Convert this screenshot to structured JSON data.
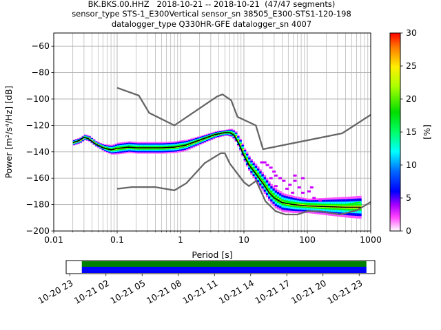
{
  "title_lines": [
    "BK.BKS.00.HHZ   2018-10-21 -- 2018-10-21  (47/47 segments)",
    "sensor_type STS-1_E300Vertical sensor_sn 38505_E300-STS1-120-198",
    "datalogger_type Q330HR-GFE datalogger_sn 4007"
  ],
  "chart_data": {
    "type": "heatmap",
    "subtype": "ppsd",
    "xlabel": "Period [s]",
    "ylabel": "Power [m²/s⁴/Hz] [dB]",
    "xscale": "log",
    "xlim": [
      0.01,
      1000
    ],
    "ylim": [
      -200,
      -50
    ],
    "grid": true,
    "x_ticks": [
      {
        "value": 0.01,
        "label": "0.01"
      },
      {
        "value": 0.1,
        "label": "0.1"
      },
      {
        "value": 1,
        "label": "1"
      },
      {
        "value": 10,
        "label": "10"
      },
      {
        "value": 100,
        "label": "100"
      },
      {
        "value": 1000,
        "label": "1000"
      }
    ],
    "y_ticks": [
      {
        "value": -60,
        "label": "−60"
      },
      {
        "value": -80,
        "label": "−80"
      },
      {
        "value": -100,
        "label": "−100"
      },
      {
        "value": -120,
        "label": "−120"
      },
      {
        "value": -140,
        "label": "−140"
      },
      {
        "value": -160,
        "label": "−160"
      },
      {
        "value": -180,
        "label": "−180"
      },
      {
        "value": -200,
        "label": "−200"
      }
    ],
    "colorbar": {
      "label": "[%]",
      "range": [
        0,
        30
      ],
      "ticks": [
        {
          "value": 0,
          "label": "0"
        },
        {
          "value": 5,
          "label": "5"
        },
        {
          "value": 10,
          "label": "10"
        },
        {
          "value": 15,
          "label": "15"
        },
        {
          "value": 20,
          "label": "20"
        },
        {
          "value": 25,
          "label": "25"
        },
        {
          "value": 30,
          "label": "30"
        }
      ]
    },
    "noise_models": [
      {
        "role": "nhnm",
        "color": "#666666",
        "points": [
          [
            0.1,
            -91.5
          ],
          [
            0.22,
            -97.4
          ],
          [
            0.32,
            -110.5
          ],
          [
            0.8,
            -120
          ],
          [
            3.8,
            -98
          ],
          [
            4.6,
            -96.5
          ],
          [
            6.3,
            -101
          ],
          [
            7.9,
            -113.5
          ],
          [
            15.4,
            -120
          ],
          [
            20,
            -138
          ],
          [
            354.8,
            -126
          ],
          [
            1000,
            -112
          ]
        ]
      },
      {
        "role": "nlnm",
        "color": "#666666",
        "points": [
          [
            0.1,
            -168
          ],
          [
            0.17,
            -166.7
          ],
          [
            0.4,
            -166.7
          ],
          [
            0.8,
            -169.2
          ],
          [
            1.24,
            -163.7
          ],
          [
            2.4,
            -148.6
          ],
          [
            4.3,
            -141.1
          ],
          [
            5,
            -141.1
          ],
          [
            6,
            -149
          ],
          [
            10,
            -163
          ],
          [
            12,
            -166
          ],
          [
            15.6,
            -162
          ],
          [
            21.9,
            -177.5
          ],
          [
            31.6,
            -185
          ],
          [
            45,
            -187.5
          ],
          [
            70,
            -187.5
          ],
          [
            101,
            -185
          ],
          [
            154,
            -185
          ],
          [
            328,
            -187.5
          ],
          [
            600,
            -184.4
          ],
          [
            1000,
            -178
          ]
        ]
      }
    ],
    "mean_curve": {
      "color": "#000000",
      "points": [
        [
          0.02,
          -133
        ],
        [
          0.025,
          -131.5
        ],
        [
          0.03,
          -129
        ],
        [
          0.035,
          -130
        ],
        [
          0.045,
          -134
        ],
        [
          0.06,
          -137
        ],
        [
          0.08,
          -138.5
        ],
        [
          0.1,
          -137.5
        ],
        [
          0.15,
          -136.5
        ],
        [
          0.2,
          -137
        ],
        [
          0.3,
          -137
        ],
        [
          0.5,
          -137
        ],
        [
          0.8,
          -136.5
        ],
        [
          1.2,
          -135
        ],
        [
          1.8,
          -132
        ],
        [
          2.5,
          -129.5
        ],
        [
          3.5,
          -127
        ],
        [
          5,
          -125.5
        ],
        [
          6,
          -125.5
        ],
        [
          7,
          -127.5
        ],
        [
          8.5,
          -135
        ],
        [
          10,
          -143
        ],
        [
          12,
          -150
        ],
        [
          15,
          -156
        ],
        [
          20,
          -164
        ],
        [
          25,
          -171
        ],
        [
          30,
          -175
        ],
        [
          40,
          -178.5
        ],
        [
          60,
          -180
        ],
        [
          100,
          -181
        ],
        [
          200,
          -181.5
        ],
        [
          400,
          -182
        ],
        [
          700,
          -182
        ]
      ]
    },
    "mode_curve": {
      "color": "#00ff00",
      "points": [
        [
          0.02,
          -133
        ],
        [
          0.025,
          -131.5
        ],
        [
          0.03,
          -129
        ],
        [
          0.035,
          -130
        ],
        [
          0.045,
          -134
        ],
        [
          0.06,
          -137
        ],
        [
          0.08,
          -138
        ],
        [
          0.1,
          -136.5
        ],
        [
          0.15,
          -136
        ],
        [
          0.2,
          -136.5
        ],
        [
          0.3,
          -136.5
        ],
        [
          0.5,
          -136.5
        ],
        [
          0.8,
          -136
        ],
        [
          1.2,
          -134.5
        ],
        [
          1.8,
          -131.5
        ],
        [
          2.5,
          -129
        ],
        [
          3.5,
          -126.5
        ],
        [
          5,
          -125
        ],
        [
          6,
          -125
        ],
        [
          7,
          -127
        ],
        [
          8.5,
          -134
        ],
        [
          10,
          -142
        ],
        [
          12,
          -149
        ],
        [
          15,
          -155
        ],
        [
          20,
          -162
        ],
        [
          25,
          -169
        ],
        [
          30,
          -174
        ],
        [
          40,
          -178
        ],
        [
          60,
          -179
        ],
        [
          100,
          -179
        ],
        [
          200,
          -180
        ],
        [
          400,
          -180
        ],
        [
          700,
          -178
        ]
      ]
    },
    "density_band": {
      "center": [
        [
          0.02,
          -133
        ],
        [
          0.025,
          -131.5
        ],
        [
          0.03,
          -129
        ],
        [
          0.035,
          -130
        ],
        [
          0.045,
          -134
        ],
        [
          0.06,
          -137
        ],
        [
          0.08,
          -138.5
        ],
        [
          0.1,
          -137.5
        ],
        [
          0.15,
          -136.5
        ],
        [
          0.2,
          -137
        ],
        [
          0.3,
          -137
        ],
        [
          0.5,
          -137
        ],
        [
          0.8,
          -136.5
        ],
        [
          1.2,
          -135
        ],
        [
          1.8,
          -132
        ],
        [
          2.5,
          -129.5
        ],
        [
          3.5,
          -127
        ],
        [
          5,
          -125.5
        ],
        [
          6,
          -125.5
        ],
        [
          7,
          -127.5
        ],
        [
          8.5,
          -135
        ],
        [
          10,
          -143
        ],
        [
          12,
          -150
        ],
        [
          15,
          -156
        ],
        [
          20,
          -164
        ],
        [
          25,
          -171
        ],
        [
          30,
          -175
        ],
        [
          40,
          -178.5
        ],
        [
          60,
          -180
        ],
        [
          100,
          -181
        ],
        [
          200,
          -181.5
        ],
        [
          400,
          -182
        ],
        [
          700,
          -182
        ]
      ],
      "spread_db": [
        [
          0.02,
          2
        ],
        [
          0.05,
          2
        ],
        [
          0.1,
          4
        ],
        [
          0.3,
          4
        ],
        [
          1,
          4
        ],
        [
          2,
          3
        ],
        [
          5,
          2
        ],
        [
          8,
          4
        ],
        [
          15,
          6
        ],
        [
          30,
          7
        ],
        [
          100,
          5
        ],
        [
          700,
          8
        ]
      ]
    },
    "outliers": [
      [
        20,
        -148
      ],
      [
        25,
        -152
      ],
      [
        30,
        -158
      ],
      [
        35,
        -160
      ],
      [
        40,
        -162
      ],
      [
        50,
        -165
      ],
      [
        60,
        -162
      ],
      [
        70,
        -167
      ],
      [
        80,
        -171
      ],
      [
        100,
        -170
      ],
      [
        120,
        -175
      ],
      [
        150,
        -177
      ],
      [
        30,
        -166
      ],
      [
        45,
        -168
      ],
      [
        55,
        -171
      ],
      [
        25,
        -160
      ],
      [
        18,
        -148
      ],
      [
        22,
        -150
      ],
      [
        28,
        -155
      ],
      [
        60,
        -158
      ],
      [
        80,
        -160
      ],
      [
        110,
        -167
      ]
    ]
  },
  "timebar": {
    "tick_labels": [
      "10-20 23",
      "10-21 02",
      "10-21 05",
      "10-21 08",
      "10-21 11",
      "10-21 14",
      "10-21 17",
      "10-21 20",
      "10-21 23"
    ],
    "coverage_start_hour": 0,
    "coverage_end_hour": 23.6,
    "axis_start_hour": -1.3,
    "axis_end_hour": 24.3,
    "data_color": "#0000ff",
    "processed_color": "#008000"
  }
}
